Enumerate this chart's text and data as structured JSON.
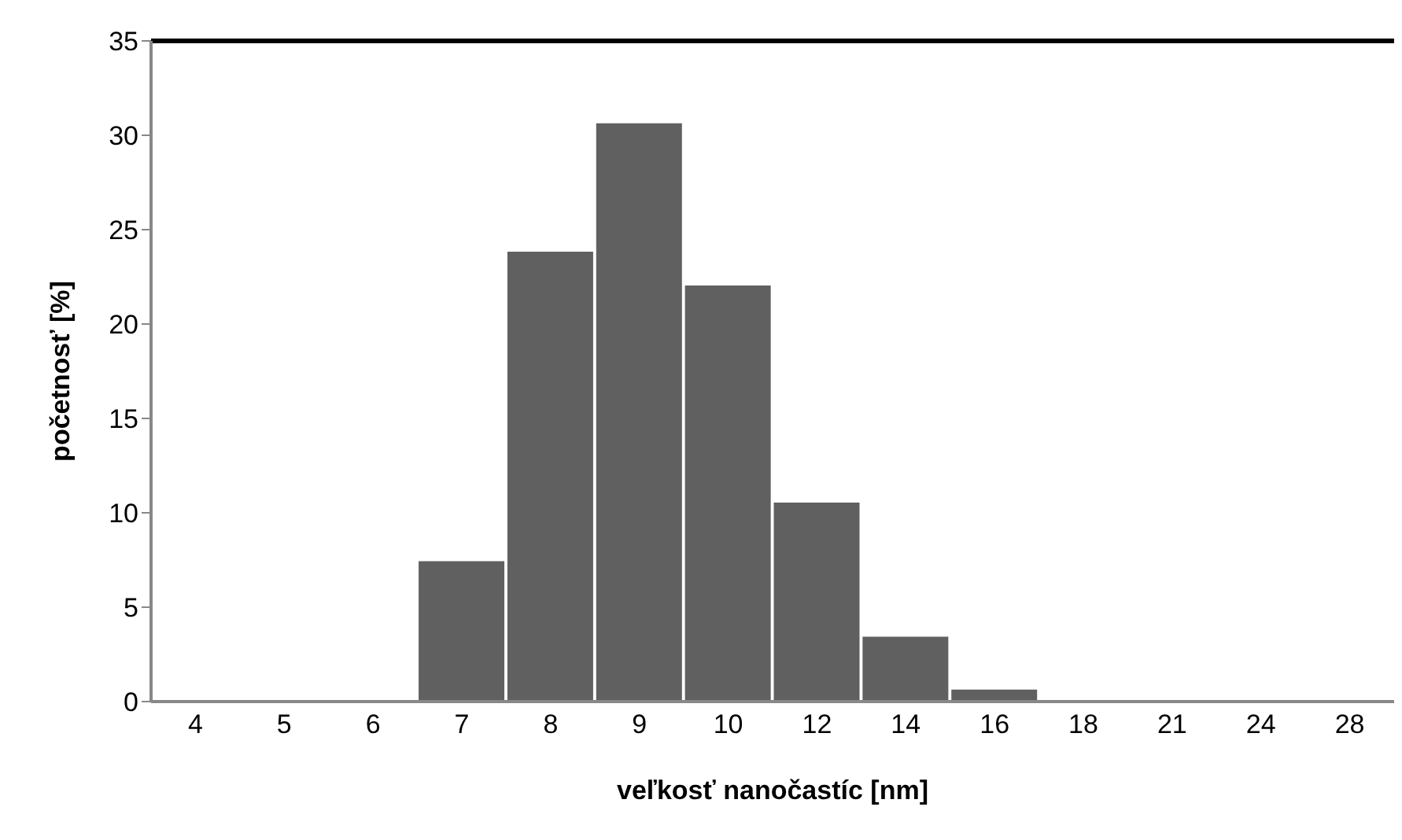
{
  "chart_data": {
    "type": "bar",
    "xlabel": "veľkosť nanočastíc  [nm]",
    "ylabel": "početnosť [%]",
    "categories": [
      "4",
      "5",
      "6",
      "7",
      "8",
      "9",
      "10",
      "12",
      "14",
      "16",
      "18",
      "21",
      "24",
      "28"
    ],
    "values": [
      0.1,
      0.1,
      0.1,
      7.5,
      23.9,
      30.7,
      22.1,
      10.6,
      3.5,
      0.7,
      0,
      0.1,
      0.1,
      0.1
    ],
    "color": "#606060",
    "ylim": [
      0,
      35
    ],
    "yticks": [
      0,
      5,
      10,
      15,
      20,
      25,
      30,
      35
    ],
    "grid": false,
    "legend": false
  }
}
